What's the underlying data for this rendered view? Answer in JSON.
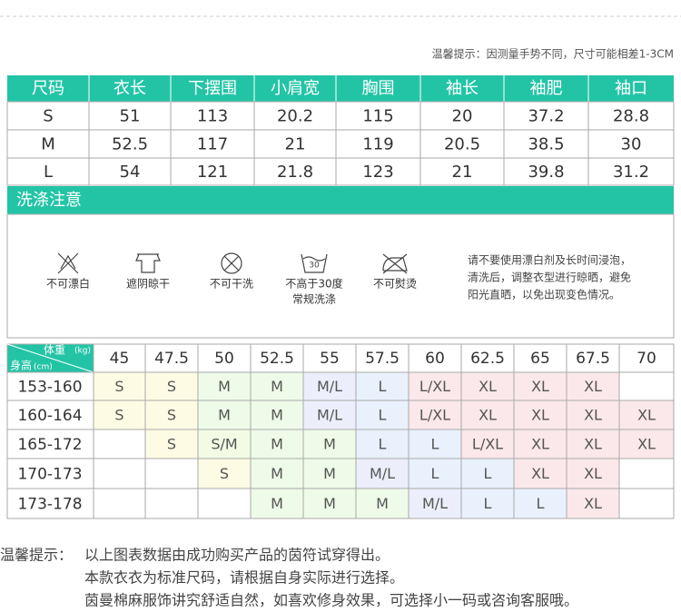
{
  "tip": "温馨提示：因测量手势不同，尺寸可能相差1-3CM",
  "size_table": {
    "headers": [
      "尺码",
      "衣长",
      "下摆围",
      "小肩宽",
      "胸围",
      "袖长",
      "袖肥",
      "袖口"
    ],
    "rows": [
      [
        "S",
        51,
        113,
        20.2,
        115,
        20,
        37.2,
        28.8
      ],
      [
        "M",
        52.5,
        117,
        21,
        119,
        20.5,
        38.5,
        30
      ],
      [
        "L",
        54,
        121,
        21.8,
        123,
        21,
        39.8,
        31.2
      ]
    ]
  },
  "care": {
    "title": "洗涤注意",
    "items": [
      {
        "label": [
          "不可漂白"
        ]
      },
      {
        "label": [
          "遮阴晾干"
        ]
      },
      {
        "label": [
          "不可干洗"
        ]
      },
      {
        "icon_text": "30",
        "label": [
          "不高于30度",
          "常规洗涤"
        ]
      },
      {
        "label": [
          "不可熨烫"
        ]
      }
    ],
    "note": [
      "请不要使用漂白剂及长时间浸泡，",
      "清洗后，调整衣型进行晾晒，避免",
      "阳光直晒，以免出现变色情况。"
    ]
  },
  "fit_table": {
    "weight_label": "体重",
    "weight_unit": "(kg)",
    "height_label": "身高",
    "height_unit": "(cm)",
    "weights": [
      45,
      47.5,
      50,
      52.5,
      55,
      57.5,
      60,
      62.5,
      65,
      67.5,
      70
    ],
    "rows": [
      {
        "height": "153-160",
        "sizes": [
          "S",
          "S",
          "M",
          "M",
          "M/L",
          "L",
          "L/XL",
          "XL",
          "XL",
          "XL",
          null
        ]
      },
      {
        "height": "160-164",
        "sizes": [
          "S",
          "S",
          "M",
          "M",
          "M/L",
          "L",
          "L/XL",
          "XL",
          "XL",
          "XL",
          "XL"
        ]
      },
      {
        "height": "165-172",
        "sizes": [
          null,
          "S",
          "S/M",
          "M",
          "M",
          "L",
          "L",
          "L/XL",
          "XL",
          "XL",
          "XL"
        ]
      },
      {
        "height": "170-173",
        "sizes": [
          null,
          null,
          "S",
          "M",
          "M",
          "M/L",
          "L",
          "L",
          "XL",
          "XL",
          null
        ]
      },
      {
        "height": "173-178",
        "sizes": [
          null,
          null,
          null,
          "M",
          "M",
          "M",
          "M/L",
          "L",
          "L",
          "XL",
          null
        ]
      }
    ]
  },
  "footer": {
    "label": "温馨提示：",
    "lines": [
      "以上图表数据由成功购买产品的茵符试穿得出。",
      "本款衣衣为标准尺码，请根据自身实际进行选择。",
      "茵曼棉麻服饰讲究舒适自然，如喜欢修身效果，可选择小一码或咨询客服哦。"
    ]
  }
}
